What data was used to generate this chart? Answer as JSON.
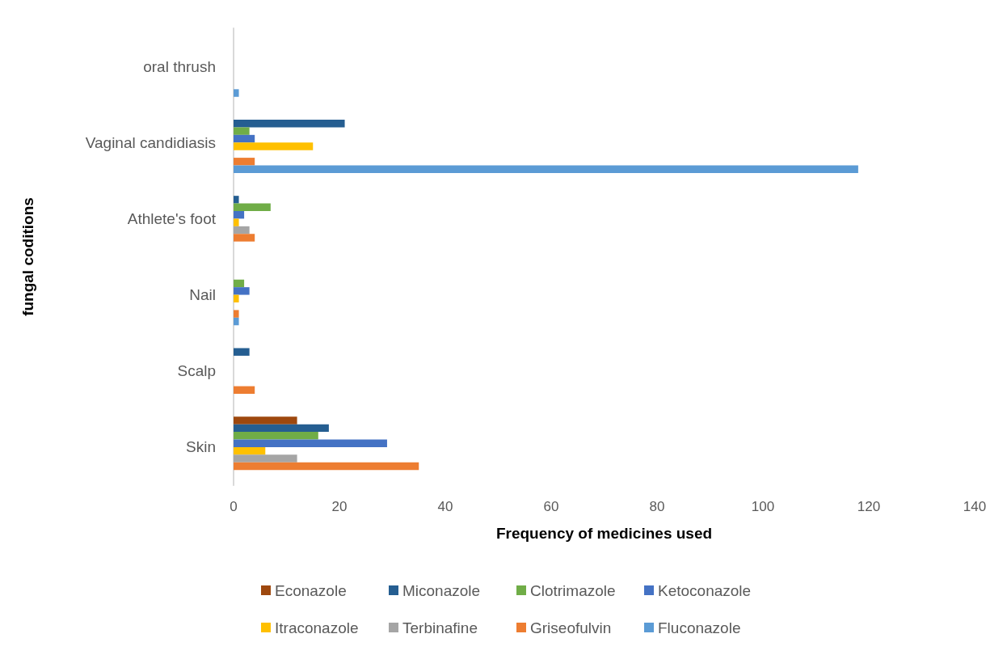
{
  "chart_data": {
    "type": "bar",
    "orientation": "horizontal",
    "xlabel": "Frequency of medicines used",
    "ylabel": "fungal coditions",
    "categories": [
      "oral thrush",
      "Vaginal candidiasis",
      "Athlete's foot",
      "Nail",
      "Scalp",
      "Skin"
    ],
    "series": [
      {
        "name": "Econazole",
        "color": "#9e480e",
        "values": [
          null,
          null,
          null,
          null,
          null,
          12
        ]
      },
      {
        "name": "Miconazole",
        "color": "#255e91",
        "values": [
          null,
          21,
          1,
          null,
          3,
          18
        ]
      },
      {
        "name": "Clotrimazole",
        "color": "#70ad47",
        "values": [
          null,
          3,
          7,
          2,
          null,
          16
        ]
      },
      {
        "name": "Ketoconazole",
        "color": "#4472c4",
        "values": [
          null,
          4,
          2,
          3,
          null,
          29
        ]
      },
      {
        "name": "Itraconazole",
        "color": "#ffc000",
        "values": [
          null,
          15,
          1,
          1,
          null,
          6
        ]
      },
      {
        "name": "Terbinafine",
        "color": "#a5a5a5",
        "values": [
          null,
          null,
          3,
          null,
          null,
          12
        ]
      },
      {
        "name": "Griseofulvin",
        "color": "#ed7d31",
        "values": [
          null,
          4,
          4,
          1,
          4,
          35
        ]
      },
      {
        "name": "Fluconazole",
        "color": "#5b9bd5",
        "values": [
          1,
          118,
          null,
          1,
          null,
          null
        ]
      }
    ],
    "xlim": [
      0,
      140
    ],
    "xticks": [
      0,
      20,
      40,
      60,
      80,
      100,
      120,
      140
    ],
    "grid": false,
    "legend": "bottom"
  }
}
